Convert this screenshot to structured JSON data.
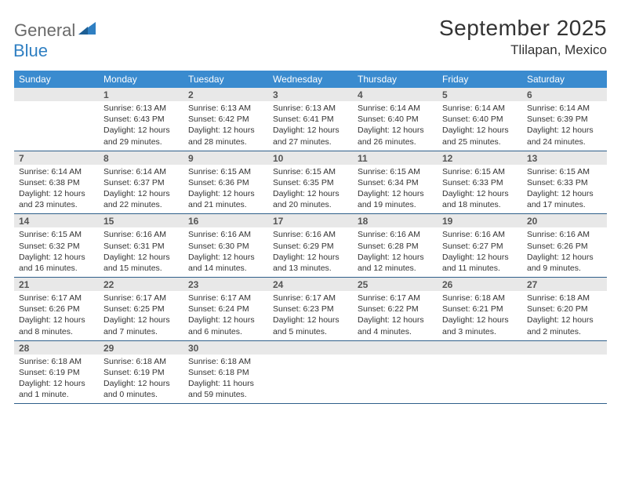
{
  "brand": {
    "general": "General",
    "blue": "Blue"
  },
  "title": "September 2025",
  "location": "Tlilapan, Mexico",
  "colors": {
    "header_bg": "#3a8bcf",
    "daynum_bg": "#e8e8e8",
    "border": "#2f5f8a",
    "logo_gray": "#6a6a6a",
    "logo_blue": "#2f7fc2"
  },
  "weekdays": [
    "Sunday",
    "Monday",
    "Tuesday",
    "Wednesday",
    "Thursday",
    "Friday",
    "Saturday"
  ],
  "weeks": [
    [
      {
        "num": "",
        "sunrise": "",
        "sunset": "",
        "daylight": ""
      },
      {
        "num": "1",
        "sunrise": "Sunrise: 6:13 AM",
        "sunset": "Sunset: 6:43 PM",
        "daylight": "Daylight: 12 hours and 29 minutes."
      },
      {
        "num": "2",
        "sunrise": "Sunrise: 6:13 AM",
        "sunset": "Sunset: 6:42 PM",
        "daylight": "Daylight: 12 hours and 28 minutes."
      },
      {
        "num": "3",
        "sunrise": "Sunrise: 6:13 AM",
        "sunset": "Sunset: 6:41 PM",
        "daylight": "Daylight: 12 hours and 27 minutes."
      },
      {
        "num": "4",
        "sunrise": "Sunrise: 6:14 AM",
        "sunset": "Sunset: 6:40 PM",
        "daylight": "Daylight: 12 hours and 26 minutes."
      },
      {
        "num": "5",
        "sunrise": "Sunrise: 6:14 AM",
        "sunset": "Sunset: 6:40 PM",
        "daylight": "Daylight: 12 hours and 25 minutes."
      },
      {
        "num": "6",
        "sunrise": "Sunrise: 6:14 AM",
        "sunset": "Sunset: 6:39 PM",
        "daylight": "Daylight: 12 hours and 24 minutes."
      }
    ],
    [
      {
        "num": "7",
        "sunrise": "Sunrise: 6:14 AM",
        "sunset": "Sunset: 6:38 PM",
        "daylight": "Daylight: 12 hours and 23 minutes."
      },
      {
        "num": "8",
        "sunrise": "Sunrise: 6:14 AM",
        "sunset": "Sunset: 6:37 PM",
        "daylight": "Daylight: 12 hours and 22 minutes."
      },
      {
        "num": "9",
        "sunrise": "Sunrise: 6:15 AM",
        "sunset": "Sunset: 6:36 PM",
        "daylight": "Daylight: 12 hours and 21 minutes."
      },
      {
        "num": "10",
        "sunrise": "Sunrise: 6:15 AM",
        "sunset": "Sunset: 6:35 PM",
        "daylight": "Daylight: 12 hours and 20 minutes."
      },
      {
        "num": "11",
        "sunrise": "Sunrise: 6:15 AM",
        "sunset": "Sunset: 6:34 PM",
        "daylight": "Daylight: 12 hours and 19 minutes."
      },
      {
        "num": "12",
        "sunrise": "Sunrise: 6:15 AM",
        "sunset": "Sunset: 6:33 PM",
        "daylight": "Daylight: 12 hours and 18 minutes."
      },
      {
        "num": "13",
        "sunrise": "Sunrise: 6:15 AM",
        "sunset": "Sunset: 6:33 PM",
        "daylight": "Daylight: 12 hours and 17 minutes."
      }
    ],
    [
      {
        "num": "14",
        "sunrise": "Sunrise: 6:15 AM",
        "sunset": "Sunset: 6:32 PM",
        "daylight": "Daylight: 12 hours and 16 minutes."
      },
      {
        "num": "15",
        "sunrise": "Sunrise: 6:16 AM",
        "sunset": "Sunset: 6:31 PM",
        "daylight": "Daylight: 12 hours and 15 minutes."
      },
      {
        "num": "16",
        "sunrise": "Sunrise: 6:16 AM",
        "sunset": "Sunset: 6:30 PM",
        "daylight": "Daylight: 12 hours and 14 minutes."
      },
      {
        "num": "17",
        "sunrise": "Sunrise: 6:16 AM",
        "sunset": "Sunset: 6:29 PM",
        "daylight": "Daylight: 12 hours and 13 minutes."
      },
      {
        "num": "18",
        "sunrise": "Sunrise: 6:16 AM",
        "sunset": "Sunset: 6:28 PM",
        "daylight": "Daylight: 12 hours and 12 minutes."
      },
      {
        "num": "19",
        "sunrise": "Sunrise: 6:16 AM",
        "sunset": "Sunset: 6:27 PM",
        "daylight": "Daylight: 12 hours and 11 minutes."
      },
      {
        "num": "20",
        "sunrise": "Sunrise: 6:16 AM",
        "sunset": "Sunset: 6:26 PM",
        "daylight": "Daylight: 12 hours and 9 minutes."
      }
    ],
    [
      {
        "num": "21",
        "sunrise": "Sunrise: 6:17 AM",
        "sunset": "Sunset: 6:26 PM",
        "daylight": "Daylight: 12 hours and 8 minutes."
      },
      {
        "num": "22",
        "sunrise": "Sunrise: 6:17 AM",
        "sunset": "Sunset: 6:25 PM",
        "daylight": "Daylight: 12 hours and 7 minutes."
      },
      {
        "num": "23",
        "sunrise": "Sunrise: 6:17 AM",
        "sunset": "Sunset: 6:24 PM",
        "daylight": "Daylight: 12 hours and 6 minutes."
      },
      {
        "num": "24",
        "sunrise": "Sunrise: 6:17 AM",
        "sunset": "Sunset: 6:23 PM",
        "daylight": "Daylight: 12 hours and 5 minutes."
      },
      {
        "num": "25",
        "sunrise": "Sunrise: 6:17 AM",
        "sunset": "Sunset: 6:22 PM",
        "daylight": "Daylight: 12 hours and 4 minutes."
      },
      {
        "num": "26",
        "sunrise": "Sunrise: 6:18 AM",
        "sunset": "Sunset: 6:21 PM",
        "daylight": "Daylight: 12 hours and 3 minutes."
      },
      {
        "num": "27",
        "sunrise": "Sunrise: 6:18 AM",
        "sunset": "Sunset: 6:20 PM",
        "daylight": "Daylight: 12 hours and 2 minutes."
      }
    ],
    [
      {
        "num": "28",
        "sunrise": "Sunrise: 6:18 AM",
        "sunset": "Sunset: 6:19 PM",
        "daylight": "Daylight: 12 hours and 1 minute."
      },
      {
        "num": "29",
        "sunrise": "Sunrise: 6:18 AM",
        "sunset": "Sunset: 6:19 PM",
        "daylight": "Daylight: 12 hours and 0 minutes."
      },
      {
        "num": "30",
        "sunrise": "Sunrise: 6:18 AM",
        "sunset": "Sunset: 6:18 PM",
        "daylight": "Daylight: 11 hours and 59 minutes."
      },
      {
        "num": "",
        "sunrise": "",
        "sunset": "",
        "daylight": ""
      },
      {
        "num": "",
        "sunrise": "",
        "sunset": "",
        "daylight": ""
      },
      {
        "num": "",
        "sunrise": "",
        "sunset": "",
        "daylight": ""
      },
      {
        "num": "",
        "sunrise": "",
        "sunset": "",
        "daylight": ""
      }
    ]
  ]
}
